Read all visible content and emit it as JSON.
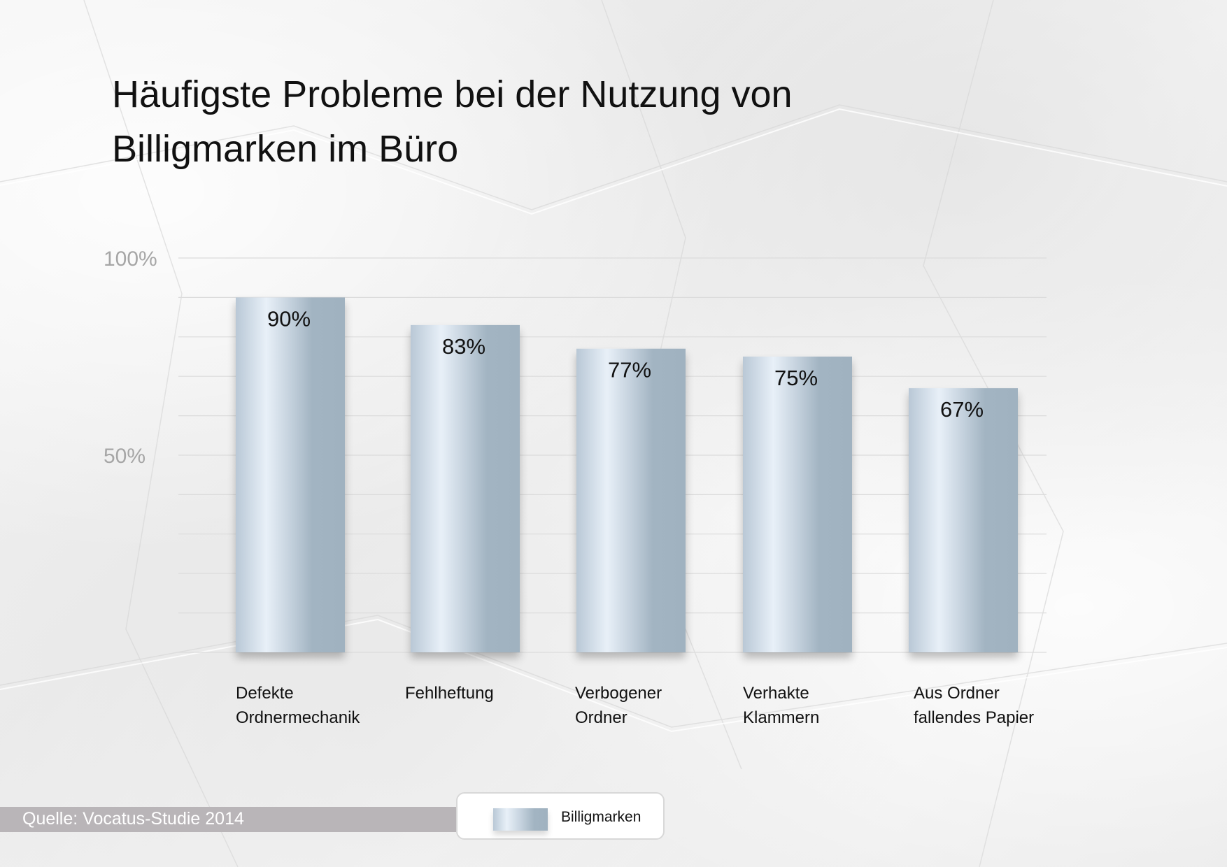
{
  "title_lines": [
    "Häufigste Probleme bei der Nutzung von",
    "Billigmarken im Büro"
  ],
  "source": "Quelle: Vocatus-Studie 2014",
  "legend_label": "Billigmarken",
  "colors": {
    "bar_light": "#e8f0f8",
    "bar_dark": "#a0b2c0",
    "gridline": "#dcdcdc",
    "axis_label": "#a6a6a6",
    "source_bar": "#b9b5b8"
  },
  "chart_data": {
    "type": "bar",
    "title": "Häufigste Probleme bei der Nutzung von Billigmarken im Büro",
    "categories": [
      [
        "Defekte",
        "Ordnermechanik"
      ],
      [
        "Fehlheftung"
      ],
      [
        "Verbogener",
        "Ordner"
      ],
      [
        "Verhakte",
        "Klammern"
      ],
      [
        "Aus Ordner",
        "fallendes Papier"
      ]
    ],
    "series": [
      {
        "name": "Billigmarken",
        "values": [
          90,
          83,
          77,
          75,
          67
        ],
        "labels": [
          "90%",
          "83%",
          "77%",
          "75%",
          "67%"
        ]
      }
    ],
    "ylim": [
      0,
      100
    ],
    "yticks": [
      50,
      100
    ],
    "ytick_labels": [
      "50%",
      "100%"
    ],
    "grid": true,
    "grid_step": 10,
    "legend": "bottom"
  }
}
